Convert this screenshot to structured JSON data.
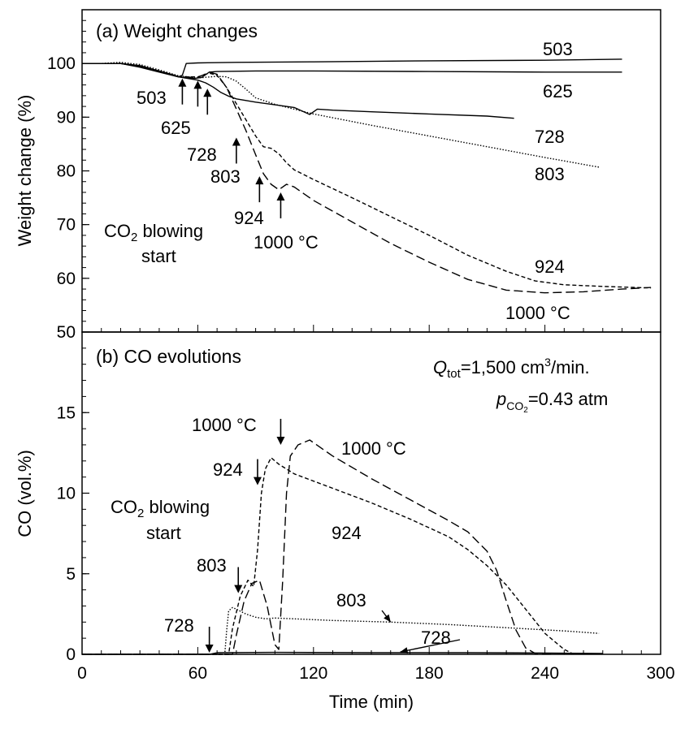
{
  "chart_data": [
    {
      "id": "a",
      "type": "line",
      "title": "(a) Weight changes",
      "xlabel": "",
      "ylabel": "Weight change (%)",
      "xlim": [
        0,
        300
      ],
      "ylim": [
        50,
        110
      ],
      "yticks": [
        "50",
        "60",
        "70",
        "80",
        "90",
        "100"
      ],
      "series": [
        {
          "name": "503",
          "label": "503",
          "dash": "solid",
          "x": [
            0,
            10,
            20,
            30,
            40,
            48,
            50,
            52,
            54,
            60,
            80,
            120,
            180,
            240,
            280
          ],
          "y": [
            100,
            100,
            100,
            99.6,
            98.6,
            97.8,
            97.5,
            97.8,
            100,
            100.1,
            100.2,
            100.3,
            100.5,
            100.6,
            100.8
          ]
        },
        {
          "name": "625",
          "label": "625",
          "dash": "solid",
          "x": [
            0,
            20,
            30,
            40,
            50,
            58,
            62,
            66,
            70,
            90,
            120,
            180,
            240,
            280
          ],
          "y": [
            100,
            100,
            99.3,
            98.4,
            97.5,
            97.2,
            97.4,
            98.4,
            98.5,
            98.6,
            98.6,
            98.5,
            98.4,
            98.4
          ]
        },
        {
          "name": "728",
          "label": "728",
          "dash": "solid",
          "x": [
            0,
            20,
            30,
            40,
            50,
            60,
            64,
            68,
            72,
            76,
            80,
            90,
            100,
            110,
            118,
            122,
            130,
            150,
            180,
            210,
            224
          ],
          "y": [
            100,
            100,
            99.5,
            98.5,
            97.5,
            96.9,
            96.4,
            95.6,
            94.6,
            93.9,
            93.4,
            92.8,
            92.3,
            91.8,
            90.5,
            91.5,
            91.3,
            91.0,
            90.6,
            90.2,
            89.8
          ]
        },
        {
          "name": "803",
          "label": "803",
          "dash": "dotted",
          "x": [
            0,
            10,
            20,
            30,
            40,
            50,
            60,
            70,
            75,
            80,
            85,
            90,
            100,
            120,
            150,
            180,
            210,
            240,
            268
          ],
          "y": [
            100,
            100,
            100.2,
            99.8,
            98.8,
            97.7,
            97.3,
            97.6,
            97.5,
            96.7,
            95.2,
            93.6,
            92.4,
            90.6,
            88.5,
            86.5,
            84.5,
            82.5,
            80.7
          ]
        },
        {
          "name": "924",
          "label": "924",
          "dash": "dashed",
          "x": [
            0,
            20,
            30,
            40,
            50,
            60,
            66,
            70,
            75,
            80,
            85,
            90,
            94,
            98,
            102,
            106,
            110,
            120,
            140,
            160,
            180,
            200,
            220,
            235,
            250,
            270,
            295
          ],
          "y": [
            100,
            100,
            99.5,
            98.5,
            97.5,
            97.5,
            98.2,
            97.8,
            95.5,
            92.5,
            89.5,
            86.5,
            84.5,
            84.2,
            83.2,
            81.5,
            80.2,
            78.4,
            75.0,
            71.5,
            68.0,
            64.3,
            61.3,
            59.5,
            58.8,
            58.5,
            58.2
          ]
        },
        {
          "name": "1000",
          "label": "1000 °C",
          "dash": "longdash",
          "x": [
            0,
            20,
            30,
            40,
            50,
            60,
            66,
            70,
            75,
            80,
            85,
            90,
            94,
            98,
            102,
            106,
            110,
            120,
            140,
            160,
            180,
            200,
            220,
            240,
            260,
            280,
            295
          ],
          "y": [
            100,
            100,
            99.5,
            98.5,
            97.5,
            97.4,
            98.4,
            98.0,
            95.5,
            91.5,
            87.5,
            83.0,
            79.5,
            77.5,
            76.5,
            77.5,
            77.0,
            74.5,
            70.5,
            66.5,
            63.0,
            59.8,
            57.8,
            57.3,
            57.5,
            58.0,
            58.3
          ]
        }
      ],
      "annotations": [
        {
          "text": "503",
          "arrow_x": 52,
          "arrow_y": 97.2
        },
        {
          "text": "625",
          "arrow_x": 60,
          "arrow_y": 96.8
        },
        {
          "text": "728",
          "arrow_x": 65,
          "arrow_y": 95.3
        },
        {
          "text": "803",
          "arrow_x": 80,
          "arrow_y": 86.2
        },
        {
          "text": "924",
          "arrow_x": 92,
          "arrow_y": 79.0
        },
        {
          "text": "1000 °C",
          "arrow_x": 103,
          "arrow_y": 76.0
        }
      ],
      "note": "CO2 blowing start"
    },
    {
      "id": "b",
      "type": "line",
      "title": "(b) CO evolutions",
      "xlabel": "Time (min)",
      "ylabel": "CO (vol.%)",
      "xlim": [
        0,
        300
      ],
      "ylim": [
        0,
        20
      ],
      "xticks": [
        "0",
        "60",
        "120",
        "180",
        "240",
        "300"
      ],
      "yticks": [
        "0",
        "5",
        "10",
        "15"
      ],
      "conditions": {
        "q_tot": "Q",
        "q_sub": "tot",
        "q_val": "=1,500 cm",
        "q_sup": "3",
        "q_unit": "/min.",
        "p": "p",
        "p_sub": "CO2",
        "p_val": "=0.43 atm"
      },
      "series": [
        {
          "name": "728",
          "label": "728",
          "dash": "solid",
          "x": [
            0,
            66,
            70,
            100,
            150,
            200,
            240,
            270
          ],
          "y": [
            0,
            0,
            0.1,
            0.12,
            0.1,
            0.1,
            0.08,
            0.05
          ]
        },
        {
          "name": "803",
          "label": "803",
          "dash": "dotted",
          "x": [
            0,
            74,
            75,
            76,
            78,
            80,
            85,
            90,
            95,
            100,
            110,
            130,
            160,
            190,
            220,
            250,
            268
          ],
          "y": [
            0,
            0,
            1.5,
            2.7,
            2.9,
            2.8,
            2.5,
            2.3,
            2.2,
            2.25,
            2.2,
            2.1,
            2.0,
            1.85,
            1.65,
            1.45,
            1.3
          ]
        },
        {
          "name": "924",
          "label": "924",
          "dash": "dashed",
          "x": [
            0,
            76,
            78,
            82,
            86,
            89,
            91,
            93,
            95,
            98,
            102,
            110,
            130,
            150,
            170,
            190,
            200,
            210,
            220,
            230,
            240,
            250,
            255
          ],
          "y": [
            0,
            0,
            1.6,
            3.6,
            4.6,
            4.2,
            6.5,
            10.0,
            11.5,
            12.2,
            11.8,
            11.2,
            10.3,
            9.4,
            8.4,
            7.3,
            6.5,
            5.5,
            4.3,
            2.8,
            1.3,
            0.3,
            0
          ]
        },
        {
          "name": "1000",
          "label": "1000 °C",
          "dash": "longdash",
          "x": [
            0,
            78,
            80,
            84,
            88,
            92,
            96,
            100,
            102,
            104,
            106,
            108,
            112,
            118,
            130,
            150,
            170,
            190,
            200,
            210,
            215,
            220,
            225,
            230,
            235,
            245
          ],
          "y": [
            0,
            0,
            1.2,
            3.3,
            4.4,
            4.6,
            3.0,
            0.6,
            0.3,
            4.5,
            10.0,
            12.3,
            13.0,
            13.3,
            12.3,
            10.9,
            9.6,
            8.3,
            7.6,
            6.4,
            5.2,
            3.3,
            1.5,
            0.4,
            0.05,
            0
          ]
        }
      ],
      "annotations": [
        {
          "text": "728",
          "arrow_x": 66,
          "arrow_y": 0.1
        },
        {
          "text": "803",
          "arrow_x": 81,
          "arrow_y": 3.8
        },
        {
          "text": "924",
          "arrow_x": 91,
          "arrow_y": 10.5
        },
        {
          "text": "1000 °C",
          "arrow_x": 103,
          "arrow_y": 13.0
        }
      ],
      "note": "CO2 blowing start"
    }
  ]
}
